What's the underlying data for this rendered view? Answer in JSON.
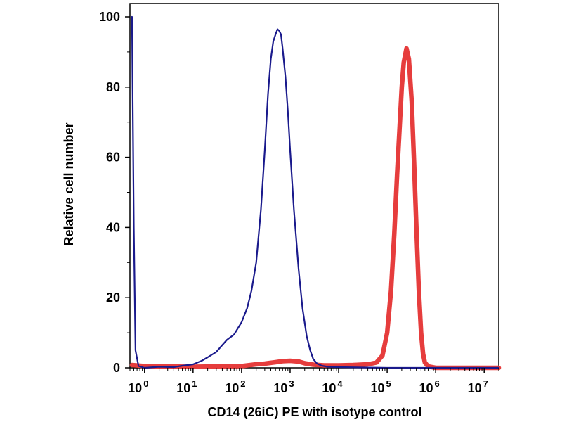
{
  "chart_data": {
    "type": "line",
    "title": "",
    "xlabel": "CD14 (26iC) PE with isotype control",
    "ylabel": "Relative cell number",
    "x_scale": "log",
    "xlim": [
      0.5,
      20000000
    ],
    "ylim": [
      0,
      100
    ],
    "x_ticks": [
      {
        "value": 1,
        "base": "10",
        "exp": "0"
      },
      {
        "value": 10,
        "base": "10",
        "exp": "1"
      },
      {
        "value": 100,
        "base": "10",
        "exp": "2"
      },
      {
        "value": 1000,
        "base": "10",
        "exp": "3"
      },
      {
        "value": 10000,
        "base": "10",
        "exp": "4"
      },
      {
        "value": 100000,
        "base": "10",
        "exp": "5"
      },
      {
        "value": 1000000,
        "base": "10",
        "exp": "6"
      },
      {
        "value": 10000000,
        "base": "10",
        "exp": "7"
      }
    ],
    "y_ticks": [
      {
        "value": 0,
        "label": "0"
      },
      {
        "value": 20,
        "label": "20"
      },
      {
        "value": 40,
        "label": "40"
      },
      {
        "value": 60,
        "label": "60"
      },
      {
        "value": 80,
        "label": "80"
      },
      {
        "value": 100,
        "label": "100"
      }
    ],
    "grid": false,
    "legend": "none",
    "series": [
      {
        "color": "#1a1a8c",
        "points": [
          [
            0.55,
            100
          ],
          [
            0.6,
            40
          ],
          [
            0.65,
            5
          ],
          [
            0.75,
            0.5
          ],
          [
            1,
            0
          ],
          [
            2,
            0.3
          ],
          [
            4,
            0.2
          ],
          [
            6,
            0.6
          ],
          [
            10,
            1
          ],
          [
            15,
            2
          ],
          [
            20,
            3
          ],
          [
            30,
            4.5
          ],
          [
            40,
            6.5
          ],
          [
            50,
            8
          ],
          [
            70,
            9.5
          ],
          [
            100,
            13
          ],
          [
            130,
            17
          ],
          [
            160,
            22
          ],
          [
            200,
            30
          ],
          [
            250,
            45
          ],
          [
            300,
            62
          ],
          [
            350,
            78
          ],
          [
            400,
            88
          ],
          [
            450,
            93
          ],
          [
            500,
            95
          ],
          [
            550,
            96.5
          ],
          [
            600,
            96
          ],
          [
            650,
            95
          ],
          [
            700,
            91
          ],
          [
            800,
            83
          ],
          [
            900,
            73
          ],
          [
            1000,
            62
          ],
          [
            1200,
            45
          ],
          [
            1500,
            28
          ],
          [
            1800,
            17
          ],
          [
            2200,
            9
          ],
          [
            2600,
            5
          ],
          [
            3000,
            2.5
          ],
          [
            3600,
            1.2
          ],
          [
            4500,
            0.6
          ],
          [
            6000,
            0.3
          ],
          [
            10000,
            0.2
          ],
          [
            100000,
            0
          ],
          [
            10000000,
            0
          ],
          [
            20000000,
            0
          ]
        ]
      },
      {
        "color": "#e63d3d",
        "points": [
          [
            0.55,
            0.8
          ],
          [
            1,
            0.5
          ],
          [
            10,
            0.3
          ],
          [
            100,
            0.5
          ],
          [
            200,
            1
          ],
          [
            300,
            1.2
          ],
          [
            500,
            1.6
          ],
          [
            700,
            1.9
          ],
          [
            1000,
            2
          ],
          [
            1500,
            1.8
          ],
          [
            2000,
            1.3
          ],
          [
            3000,
            0.9
          ],
          [
            5000,
            0.7
          ],
          [
            10000,
            0.7
          ],
          [
            20000,
            0.8
          ],
          [
            40000,
            1
          ],
          [
            60000,
            1.5
          ],
          [
            80000,
            3.5
          ],
          [
            100000,
            10
          ],
          [
            120000,
            22
          ],
          [
            140000,
            38
          ],
          [
            160000,
            55
          ],
          [
            180000,
            68
          ],
          [
            200000,
            80
          ],
          [
            220000,
            87
          ],
          [
            250000,
            91
          ],
          [
            280000,
            88
          ],
          [
            320000,
            76
          ],
          [
            360000,
            58
          ],
          [
            400000,
            40
          ],
          [
            450000,
            22
          ],
          [
            500000,
            10
          ],
          [
            550000,
            4
          ],
          [
            600000,
            1.5
          ],
          [
            700000,
            0.4
          ],
          [
            1000000,
            0
          ],
          [
            20000000,
            0
          ]
        ]
      }
    ]
  }
}
